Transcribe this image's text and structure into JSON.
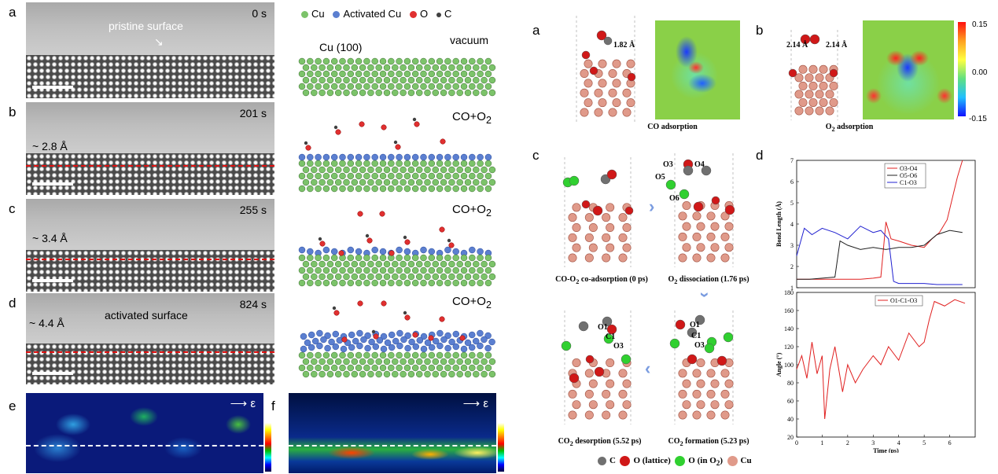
{
  "left": {
    "panels": [
      {
        "label": "a",
        "time": "0 s",
        "annotation": "pristine surface"
      },
      {
        "label": "b",
        "time": "201 s",
        "spacing": "~ 2.8 Å"
      },
      {
        "label": "c",
        "time": "255 s",
        "spacing": "~ 3.4 Å"
      },
      {
        "label": "d",
        "time": "824 s",
        "spacing": "~ 4.4 Å",
        "annotation": "activated surface"
      }
    ],
    "legend": {
      "cu": "Cu",
      "activated": "Activated Cu",
      "o": "O",
      "c": "C"
    },
    "model_labels": {
      "surface": "Cu (100)",
      "vacuum": "vacuum",
      "gas": "CO+O",
      "gas_sub": "2"
    },
    "strain_panels": [
      {
        "label": "e",
        "epsilon": "ε"
      },
      {
        "label": "f",
        "epsilon": "ε"
      }
    ],
    "colors": {
      "cu": "#7cc36a",
      "activated": "#5b7fd0",
      "o": "#e03030",
      "c": "#404040"
    }
  },
  "right": {
    "panel_a": {
      "label": "a",
      "bond": "1.82 Å",
      "caption": "CO adsorption"
    },
    "panel_b": {
      "label": "b",
      "bond_left": "2.14 Å",
      "bond_right": "2.14 Å",
      "caption_pre": "O",
      "caption_sub": "2",
      "caption_post": " adsorption",
      "colorbar_ticks": [
        "0.15",
        "0.00",
        "-0.15"
      ]
    },
    "panel_c": {
      "label": "c",
      "captions": [
        {
          "pre": "CO-O",
          "sub": "2",
          "post": " co-adsorption (0 ps)"
        },
        {
          "pre": "O",
          "sub": "2",
          "post": " dissociation (1.76 ps)"
        },
        {
          "pre": "CO",
          "sub": "2",
          "post": " desorption (5.52 ps)"
        },
        {
          "pre": "CO",
          "sub": "2",
          "post": " formation (5.23 ps)"
        }
      ],
      "atom_labels_top": [
        "O3",
        "O4",
        "O5",
        "O6"
      ],
      "atom_labels_bl": [
        "O1",
        "C1",
        "O3"
      ],
      "atom_labels_br": [
        "O1",
        "C1",
        "O3"
      ],
      "legend": {
        "c": "C",
        "o_lattice": "O (lattice)",
        "o_in_o2_pre": "O (in O",
        "o_in_o2_sub": "2",
        "o_in_o2_post": ")",
        "cu": "Cu"
      }
    },
    "panel_d": {
      "label": "d",
      "chart_data": [
        {
          "type": "line",
          "ylabel": "Bond Length (Å)",
          "ylim": [
            1,
            7
          ],
          "yticks": [
            "1",
            "2",
            "3",
            "4",
            "5",
            "6",
            "7"
          ],
          "series": [
            {
              "name": "O3-O4",
              "color": "#e02020",
              "x": [
                0,
                0.5,
                1.0,
                1.5,
                2.0,
                2.5,
                3.0,
                3.3,
                3.5,
                3.7,
                4.0,
                4.5,
                5.0,
                5.3,
                5.6,
                5.9,
                6.1,
                6.3,
                6.5
              ],
              "y": [
                1.4,
                1.4,
                1.4,
                1.4,
                1.4,
                1.4,
                1.45,
                1.5,
                4.1,
                3.3,
                3.2,
                3.0,
                2.9,
                3.3,
                3.6,
                4.2,
                5.2,
                6.2,
                7.0
              ]
            },
            {
              "name": "O5-O6",
              "color": "#202020",
              "x": [
                0,
                0.5,
                1.0,
                1.5,
                1.7,
                2.0,
                2.5,
                3.0,
                3.5,
                4.0,
                4.5,
                5.0,
                5.5,
                6.0,
                6.5
              ],
              "y": [
                1.4,
                1.4,
                1.45,
                1.5,
                3.2,
                3.0,
                2.8,
                2.9,
                2.8,
                2.9,
                2.9,
                3.0,
                3.5,
                3.7,
                3.6
              ]
            },
            {
              "name": "C1-O3",
              "color": "#2020d0",
              "x": [
                0,
                0.3,
                0.6,
                1.0,
                1.5,
                2.0,
                2.5,
                3.0,
                3.3,
                3.6,
                3.8,
                4.0,
                4.5,
                5.0,
                5.5,
                6.0,
                6.5
              ],
              "y": [
                2.5,
                3.8,
                3.5,
                3.8,
                3.6,
                3.3,
                3.9,
                3.6,
                3.7,
                3.3,
                1.3,
                1.2,
                1.2,
                1.2,
                1.15,
                1.15,
                1.15
              ]
            }
          ]
        },
        {
          "type": "line",
          "ylabel": "Angle (°)",
          "xlabel": "Time (ps)",
          "ylim": [
            20,
            180
          ],
          "yticks": [
            "20",
            "40",
            "60",
            "80",
            "100",
            "120",
            "140",
            "160",
            "180"
          ],
          "xlim": [
            0,
            7
          ],
          "xticks": [
            "0",
            "1",
            "2",
            "3",
            "4",
            "5",
            "6"
          ],
          "series": [
            {
              "name": "O1-C1-O3",
              "color": "#e02020",
              "x": [
                0,
                0.2,
                0.4,
                0.6,
                0.8,
                1.0,
                1.1,
                1.3,
                1.5,
                1.8,
                2.0,
                2.3,
                2.6,
                3.0,
                3.3,
                3.6,
                4.0,
                4.4,
                4.8,
                5.0,
                5.2,
                5.4,
                5.8,
                6.2,
                6.6
              ],
              "y": [
                95,
                110,
                85,
                125,
                90,
                110,
                40,
                95,
                120,
                70,
                100,
                80,
                95,
                110,
                100,
                120,
                105,
                135,
                120,
                125,
                150,
                170,
                165,
                172,
                168
              ]
            }
          ]
        }
      ]
    }
  }
}
